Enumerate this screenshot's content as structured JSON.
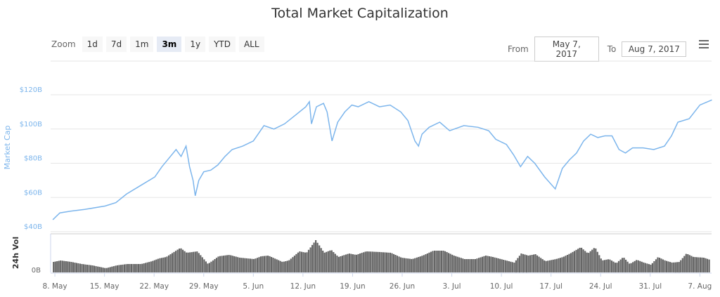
{
  "title": "Total Market Capitalization",
  "toolbar": {
    "zoom_label": "Zoom",
    "buttons": [
      "1d",
      "7d",
      "1m",
      "3m",
      "1y",
      "YTD",
      "ALL"
    ],
    "selected": "3m",
    "from_label": "From",
    "from_value": "May 7, 2017",
    "to_label": "To",
    "to_value": "Aug 7, 2017"
  },
  "chart_data": [
    {
      "type": "line",
      "title": "Total Market Capitalization",
      "ylabel": "Market Cap",
      "xlabel": "",
      "x_unit": "days since May 7, 2017",
      "ylim": [
        40,
        120
      ],
      "yticks": [
        "$40B",
        "$60B",
        "$80B",
        "$100B",
        "$120B"
      ],
      "ytick_values": [
        40,
        60,
        80,
        100,
        120
      ],
      "color": "#7cb5ec",
      "grid": true,
      "x": [
        0.7,
        1.7,
        3.2,
        5.2,
        8.1,
        9.6,
        11.1,
        13.1,
        15.1,
        16.1,
        17.1,
        18.1,
        18.8,
        19.5,
        20.0,
        20.5,
        20.8,
        21.3,
        22.0,
        23.0,
        24.0,
        25.0,
        26.0,
        27.5,
        29.0,
        30.5,
        31.9,
        33.4,
        34.9,
        36.4,
        36.9,
        37.2,
        37.9,
        38.9,
        39.4,
        40.1,
        40.9,
        41.9,
        42.9,
        43.8,
        45.3,
        46.8,
        48.3,
        49.8,
        50.8,
        51.8,
        52.3,
        52.8,
        53.8,
        55.3,
        56.7,
        58.7,
        60.7,
        62.2,
        63.2,
        64.7,
        65.7,
        66.7,
        67.7,
        68.7,
        70.1,
        71.6,
        72.6,
        73.6,
        74.6,
        75.6,
        76.6,
        77.6,
        78.6,
        79.6,
        80.6,
        81.5,
        82.5,
        84.0,
        85.5,
        87.0,
        88.0,
        88.9,
        90.5,
        92.0,
        93.7
      ],
      "values": [
        47,
        51,
        52,
        53,
        55,
        57,
        62,
        67,
        72,
        78,
        83,
        88,
        84,
        90,
        78,
        70,
        61,
        70,
        75,
        76,
        79,
        84,
        88,
        90,
        93,
        102,
        100,
        103,
        108,
        113,
        116,
        103,
        113,
        115,
        110,
        93,
        104,
        110,
        114,
        113,
        116,
        113,
        114,
        110,
        105,
        93,
        90,
        97,
        101,
        104,
        99,
        102,
        101,
        99,
        94,
        91,
        85,
        78,
        84,
        80,
        72,
        65,
        77,
        82,
        86,
        93,
        97,
        95,
        96,
        96,
        88,
        86,
        89,
        89,
        88,
        90,
        96,
        104,
        106,
        114,
        117
      ]
    },
    {
      "type": "area",
      "ylabel": "24h Vol",
      "yticks": [
        "0B"
      ],
      "color": "#666666",
      "x": [
        0.7,
        1.7,
        3.2,
        4.7,
        6.2,
        8.1,
        9.6,
        11.1,
        13.1,
        14.6,
        15.6,
        16.6,
        18.6,
        19.5,
        21.0,
        22.5,
        24.0,
        25.5,
        27.0,
        29.0,
        30.0,
        31.0,
        33.0,
        33.9,
        35.4,
        36.4,
        37.7,
        38.9,
        39.9,
        40.9,
        42.4,
        43.4,
        44.8,
        46.8,
        48.3,
        49.8,
        51.3,
        52.8,
        54.3,
        55.8,
        57.2,
        58.7,
        60.2,
        61.7,
        62.7,
        64.2,
        65.7,
        66.7,
        67.7,
        68.7,
        70.1,
        71.6,
        72.6,
        73.6,
        75.1,
        76.1,
        77.1,
        78.1,
        79.1,
        80.1,
        81.1,
        82.0,
        83.0,
        84.0,
        85.0,
        86.0,
        87.0,
        88.0,
        89.0,
        90.0,
        91.0,
        92.5,
        93.3
      ],
      "values": [
        15,
        17,
        15,
        12,
        10,
        6,
        10,
        12,
        12,
        16,
        20,
        22,
        35,
        28,
        30,
        12,
        23,
        25,
        21,
        19,
        23,
        24,
        15,
        17,
        30,
        28,
        46,
        28,
        32,
        22,
        27,
        25,
        30,
        29,
        28,
        21,
        19,
        24,
        31,
        31,
        24,
        19,
        19,
        24,
        22,
        18,
        14,
        27,
        24,
        26,
        16,
        19,
        22,
        27,
        36,
        27,
        36,
        17,
        19,
        13,
        22,
        12,
        18,
        14,
        11,
        22,
        17,
        14,
        15,
        27,
        22,
        21,
        18
      ]
    },
    {
      "xticks": [
        "8. May",
        "15. May",
        "22. May",
        "29. May",
        "5. Jun",
        "12. Jun",
        "19. Jun",
        "26. Jun",
        "3. Jul",
        "10. Jul",
        "17. Jul",
        "24. Jul",
        "31. Jul",
        "7. Aug"
      ],
      "xtick_days": [
        1,
        8,
        15,
        22,
        29,
        36,
        43,
        50,
        57,
        64,
        71,
        78,
        85,
        92
      ]
    }
  ]
}
